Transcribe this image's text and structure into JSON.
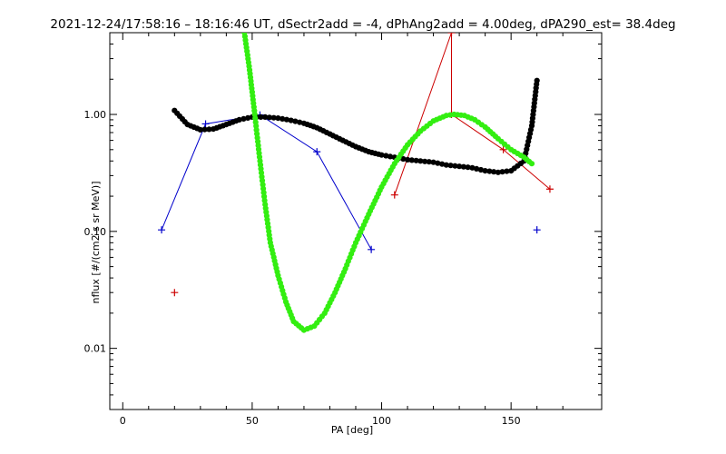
{
  "chart_data": {
    "type": "line",
    "title": "2021-12-24/17:58:16 – 18:16:46 UT, dSectr2add = -4, dPhAng2add = 4.00deg, dPA290_est=  38.4deg",
    "xlabel": "PA [deg]",
    "ylabel": "nflux [#/(cm2 s sr MeV)]",
    "xlim": [
      -5,
      185
    ],
    "ylim": [
      0.003,
      5.0
    ],
    "yscale": "log",
    "x_ticks": [
      0,
      50,
      100,
      150
    ],
    "x_tick_labels": [
      "0",
      "50",
      "100",
      "150"
    ],
    "y_ticks": [
      0.01,
      0.1,
      1.0
    ],
    "y_tick_labels": [
      "0.01",
      "0.10",
      "1.00"
    ],
    "grid": false,
    "legend": "none",
    "series": [
      {
        "style": "line+plus",
        "color": "#0000cc",
        "x": [
          15,
          32,
          53,
          75,
          96,
          160
        ],
        "y": [
          0.103,
          0.83,
          0.99,
          0.48,
          0.07,
          0.103
        ],
        "connected_points": 5
      },
      {
        "style": "line+plus",
        "color": "#cc0000",
        "x": [
          20,
          105,
          127,
          127,
          147,
          165
        ],
        "y": [
          0.03,
          0.205,
          5.0,
          1.0,
          0.5,
          0.23
        ],
        "connected_from": 1
      },
      {
        "style": "dots",
        "color": "#000000",
        "x": [
          20,
          25,
          30,
          35,
          40,
          45,
          50,
          55,
          60,
          65,
          70,
          75,
          80,
          85,
          90,
          95,
          100,
          105,
          110,
          115,
          120,
          125,
          130,
          135,
          140,
          145,
          150,
          155,
          158,
          160
        ],
        "y": [
          1.08,
          0.82,
          0.74,
          0.75,
          0.82,
          0.9,
          0.95,
          0.95,
          0.93,
          0.89,
          0.84,
          0.77,
          0.68,
          0.6,
          0.53,
          0.48,
          0.45,
          0.43,
          0.41,
          0.4,
          0.39,
          0.37,
          0.36,
          0.35,
          0.33,
          0.32,
          0.33,
          0.4,
          0.8,
          1.95
        ]
      },
      {
        "style": "dots",
        "color": "#33ee11",
        "x": [
          47,
          49,
          51,
          53,
          55,
          57,
          60,
          63,
          66,
          70,
          74,
          78,
          82,
          86,
          90,
          95,
          100,
          105,
          110,
          115,
          120,
          125,
          128,
          132,
          136,
          140,
          145,
          150,
          155,
          158
        ],
        "y": [
          5.0,
          2.4,
          1.0,
          0.4,
          0.17,
          0.08,
          0.042,
          0.025,
          0.017,
          0.0143,
          0.0155,
          0.02,
          0.03,
          0.048,
          0.08,
          0.14,
          0.24,
          0.38,
          0.55,
          0.72,
          0.88,
          0.98,
          1.0,
          0.98,
          0.9,
          0.78,
          0.62,
          0.5,
          0.43,
          0.38
        ]
      }
    ]
  }
}
